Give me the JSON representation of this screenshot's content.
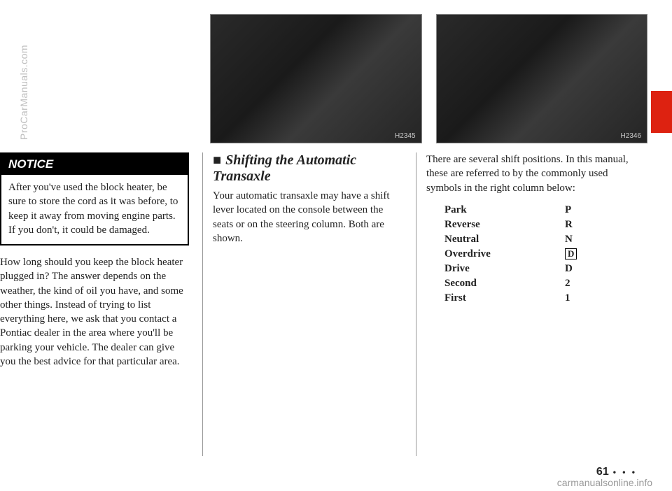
{
  "photos": {
    "left_label": "H2345",
    "right_label": "H2346"
  },
  "notice": {
    "header": "NOTICE",
    "body": "After you've used the block heater, be sure to store the cord as it was before, to keep it away from moving engine parts. If you don't, it could be damaged."
  },
  "col1_paragraph": "How long should you keep the block heater plugged in? The answer depends on the weather, the kind of oil you have, and some other things. Instead of trying to list everything here, we ask that you contact a Pontiac dealer in the area where you'll be parking your vehicle. The dealer can give you the best advice for that particular area.",
  "section": {
    "heading": "Shifting the Automatic Transaxle",
    "body": "Your automatic transaxle may have a shift lever located on the console between the seats or on the steering column. Both are shown."
  },
  "col3_intro": "There are several shift positions. In this manual, these are referred to by the commonly used symbols in the right column below:",
  "shift_positions": [
    {
      "name": "Park",
      "symbol": "P"
    },
    {
      "name": "Reverse",
      "symbol": "R"
    },
    {
      "name": "Neutral",
      "symbol": "N"
    },
    {
      "name": "Overdrive",
      "symbol": "D",
      "boxed": true
    },
    {
      "name": "Drive",
      "symbol": "D"
    },
    {
      "name": "Second",
      "symbol": "2"
    },
    {
      "name": "First",
      "symbol": "1"
    }
  ],
  "page_number": "61",
  "page_dots": "• • •",
  "watermark_side": "ProCarManuals.com",
  "watermark_footer": "carmanualsonline.info"
}
